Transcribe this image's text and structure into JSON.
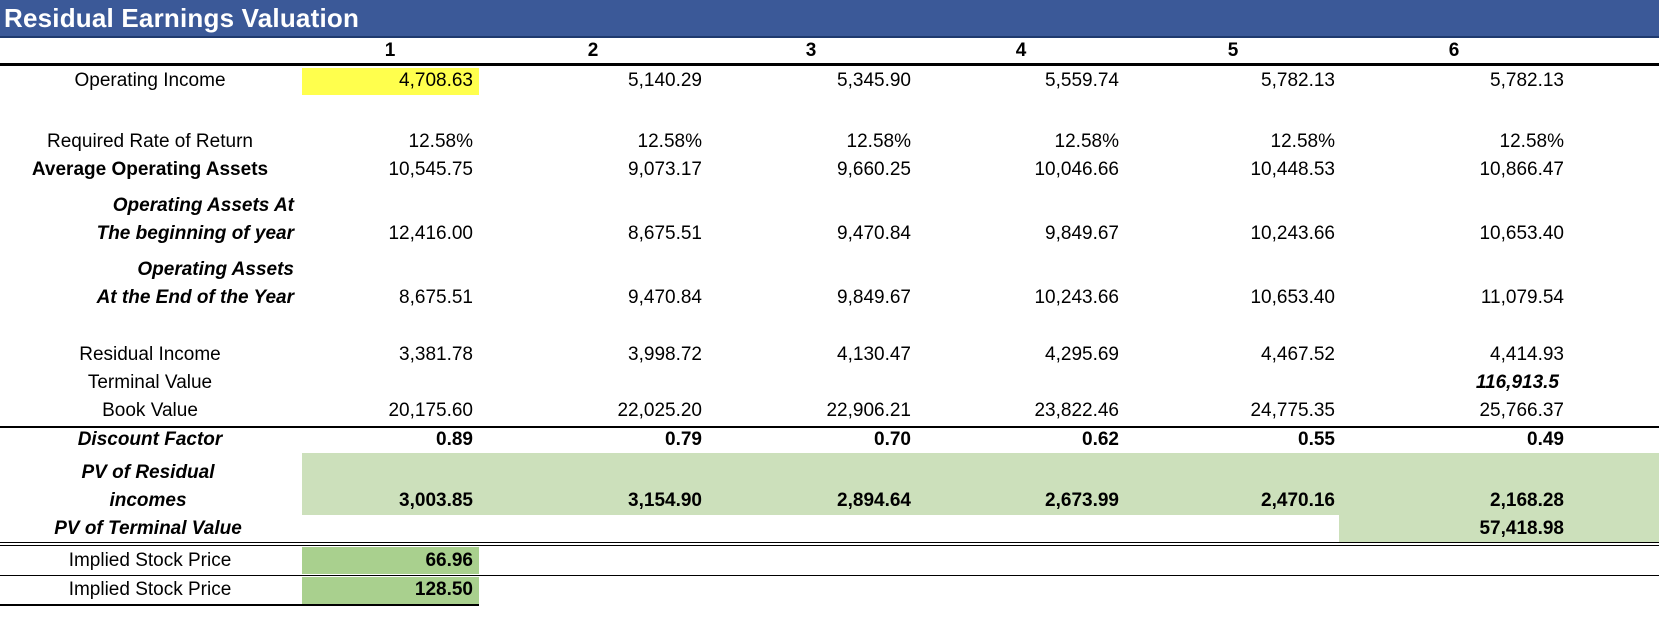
{
  "title": "Residual Earnings Valuation",
  "columns": [
    "1",
    "2",
    "3",
    "4",
    "5",
    "6"
  ],
  "rows": {
    "operating_income": {
      "label": "Operating Income",
      "values": [
        "4,708.63",
        "5,140.29",
        "5,345.90",
        "5,559.74",
        "5,782.13",
        "5,782.13"
      ]
    },
    "required_return": {
      "label": "Required Rate of Return",
      "values": [
        "12.58%",
        "12.58%",
        "12.58%",
        "12.58%",
        "12.58%",
        "12.58%"
      ]
    },
    "avg_assets": {
      "label": "Average Operating Assets",
      "values": [
        "10,545.75",
        "9,073.17",
        "9,660.25",
        "10,046.66",
        "10,448.53",
        "10,866.47"
      ]
    },
    "assets_begin": {
      "label_line1": "Operating Assets At",
      "label_line2": "The beginning of year",
      "values": [
        "12,416.00",
        "8,675.51",
        "9,470.84",
        "9,849.67",
        "10,243.66",
        "10,653.40"
      ]
    },
    "assets_end": {
      "label_line1": "Operating Assets",
      "label_line2": "At the End of the Year",
      "values": [
        "8,675.51",
        "9,470.84",
        "9,849.67",
        "10,243.66",
        "10,653.40",
        "11,079.54"
      ]
    },
    "residual_income": {
      "label": "Residual Income",
      "values": [
        "3,381.78",
        "3,998.72",
        "4,130.47",
        "4,295.69",
        "4,467.52",
        "4,414.93"
      ]
    },
    "terminal_value": {
      "label": "Terminal Value",
      "value": "116,913.5"
    },
    "book_value": {
      "label": "Book Value",
      "values": [
        "20,175.60",
        "22,025.20",
        "22,906.21",
        "23,822.46",
        "24,775.35",
        "25,766.37"
      ]
    },
    "discount_factor": {
      "label": "Discount Factor",
      "values": [
        "0.89",
        "0.79",
        "0.70",
        "0.62",
        "0.55",
        "0.49"
      ]
    },
    "pv_residual": {
      "label_line1": "PV of Residual",
      "label_line2": "incomes",
      "values": [
        "3,003.85",
        "3,154.90",
        "2,894.64",
        "2,673.99",
        "2,470.16",
        "2,168.28"
      ]
    },
    "pv_terminal": {
      "label": "PV of Terminal Value",
      "value": "57,418.98"
    },
    "implied_price_1": {
      "label": "Implied Stock Price",
      "value": "66.96"
    },
    "implied_price_2": {
      "label": "Implied Stock Price",
      "value": "128.50"
    }
  },
  "colors": {
    "header": "#3b5998",
    "highlight_yellow": "#ffff4d",
    "pv_green": "#cce0bb",
    "price_green": "#a9d08e"
  }
}
